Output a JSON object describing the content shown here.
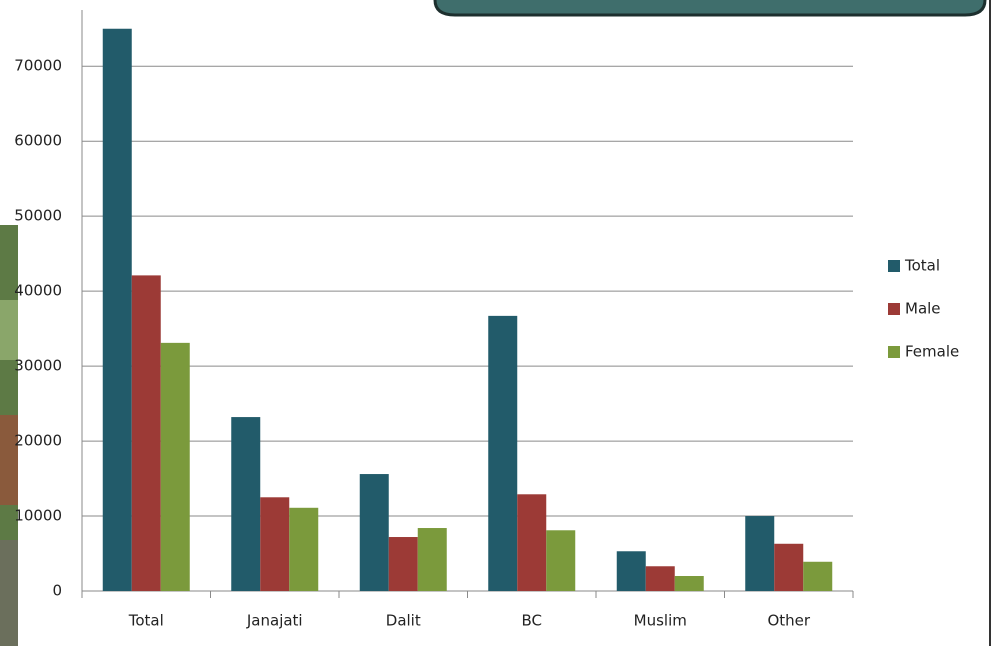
{
  "chart_data": {
    "type": "bar",
    "categories": [
      "Total",
      "Janajati",
      "Dalit",
      "BC",
      "Muslim",
      "Other"
    ],
    "series": [
      {
        "name": "Total",
        "color": "#225b6a",
        "values": [
          75000,
          23200,
          15600,
          36700,
          5300,
          10000
        ]
      },
      {
        "name": "Male",
        "color": "#9c3a36",
        "values": [
          42100,
          12500,
          7200,
          12900,
          3300,
          6300
        ]
      },
      {
        "name": "Female",
        "color": "#7b9a3c",
        "values": [
          33100,
          11100,
          8400,
          8100,
          2000,
          3900
        ]
      }
    ],
    "ylim": [
      0,
      77500
    ],
    "yticks": [
      0,
      10000,
      20000,
      30000,
      40000,
      50000,
      60000,
      70000
    ],
    "grid": true,
    "legend": "right"
  }
}
